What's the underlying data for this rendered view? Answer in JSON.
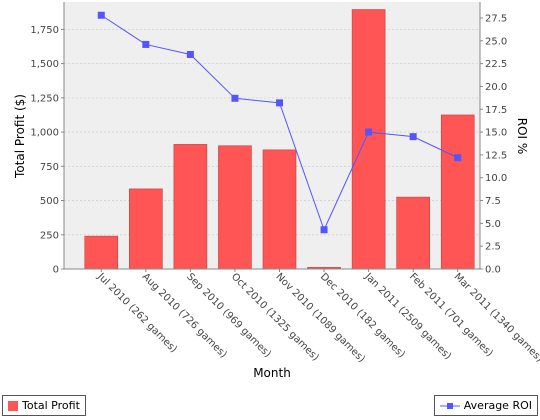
{
  "chart_data": {
    "type": "bar",
    "categories": [
      "Jul 2010 (262 games)",
      "Aug 2010 (726 games)",
      "Sep 2010 (969 games)",
      "Oct 2010 (1325 games)",
      "Nov 2010 (1089 games)",
      "Dec 2010 (182 games)",
      "Jan 2011 (2509 games)",
      "Feb 2011 (701 games)",
      "Mar 2011 (1340 games)"
    ],
    "series": [
      {
        "name": "Total Profit",
        "type": "bar",
        "axis": "left",
        "color": "#ff5555",
        "values": [
          240,
          585,
          910,
          900,
          870,
          12,
          1895,
          525,
          1125
        ]
      },
      {
        "name": "Average ROI",
        "type": "line",
        "axis": "right",
        "color": "#5555ff",
        "values": [
          27.8,
          24.6,
          23.5,
          18.7,
          18.2,
          4.3,
          15.0,
          14.5,
          12.2
        ]
      }
    ],
    "xlabel": "Month",
    "ylabel": "Total Profit ($)",
    "y2label": "ROI %",
    "ylim": [
      0,
      1950
    ],
    "y2lim": [
      0,
      29.25
    ],
    "yticks": [
      "0",
      "250",
      "500",
      "750",
      "1,000",
      "1,250",
      "1,500",
      "1,750"
    ],
    "y2ticks": [
      "0.0",
      "2.5",
      "5.0",
      "7.5",
      "10.0",
      "12.5",
      "15.0",
      "17.5",
      "20.0",
      "22.5",
      "25.0",
      "27.5"
    ],
    "grid": true,
    "legend": [
      {
        "label": "Total Profit",
        "position": "bottom-left"
      },
      {
        "label": "Average ROI",
        "position": "bottom-right"
      }
    ]
  }
}
